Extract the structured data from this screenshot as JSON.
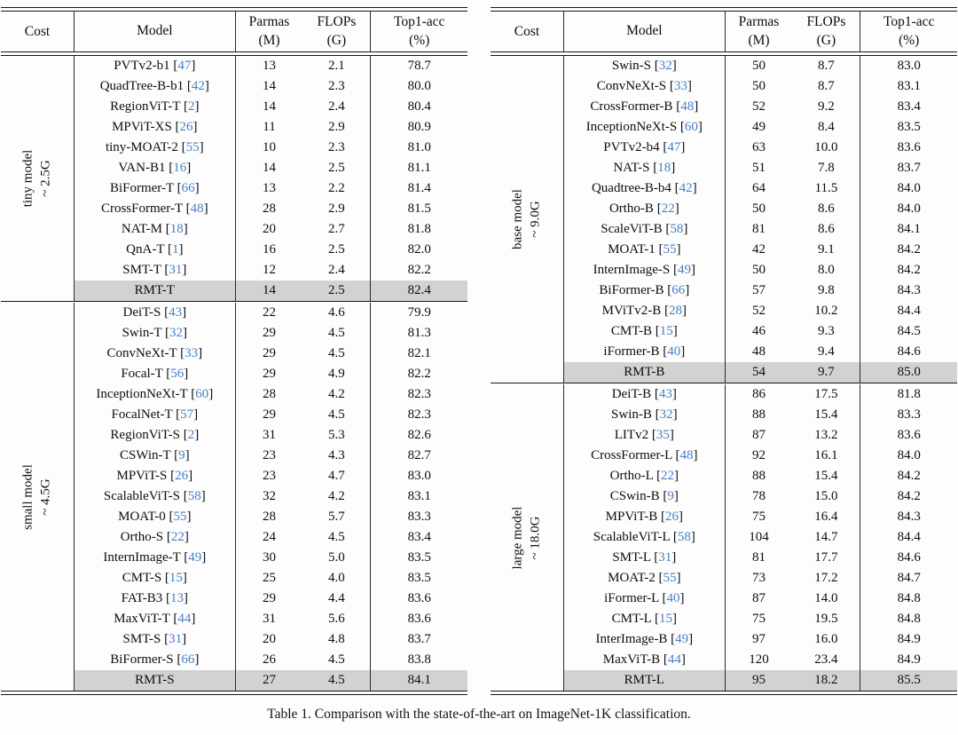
{
  "caption": "Table 1. Comparison with the state-of-the-art on ImageNet-1K classification.",
  "colors": {
    "citation_blue": "#4680c2",
    "highlight_gray": "#d2d2d2",
    "rule_black": "#161616"
  },
  "columns": {
    "cost": "Cost",
    "model": "Model",
    "params_label": "Parmas",
    "params_unit": "(M)",
    "flops_label": "FLOPs",
    "flops_unit": "(G)",
    "acc_label": "Top1-acc",
    "acc_unit": "(%)"
  },
  "tables": [
    {
      "id": "left",
      "sections": [
        {
          "cost_label": [
            "tiny model",
            "~ 2.5G"
          ],
          "rows": [
            {
              "model": "PVTv2-b1",
              "ref": "47",
              "params": "13",
              "flops": "2.1",
              "acc": "78.7",
              "highlight": false
            },
            {
              "model": "QuadTree-B-b1",
              "ref": "42",
              "params": "14",
              "flops": "2.3",
              "acc": "80.0",
              "highlight": false
            },
            {
              "model": "RegionViT-T",
              "ref": "2",
              "params": "14",
              "flops": "2.4",
              "acc": "80.4",
              "highlight": false
            },
            {
              "model": "MPViT-XS",
              "ref": "26",
              "params": "11",
              "flops": "2.9",
              "acc": "80.9",
              "highlight": false
            },
            {
              "model": "tiny-MOAT-2",
              "ref": "55",
              "params": "10",
              "flops": "2.3",
              "acc": "81.0",
              "highlight": false
            },
            {
              "model": "VAN-B1",
              "ref": "16",
              "params": "14",
              "flops": "2.5",
              "acc": "81.1",
              "highlight": false
            },
            {
              "model": "BiFormer-T",
              "ref": "66",
              "params": "13",
              "flops": "2.2",
              "acc": "81.4",
              "highlight": false
            },
            {
              "model": "CrossFormer-T",
              "ref": "48",
              "params": "28",
              "flops": "2.9",
              "acc": "81.5",
              "highlight": false
            },
            {
              "model": "NAT-M",
              "ref": "18",
              "params": "20",
              "flops": "2.7",
              "acc": "81.8",
              "highlight": false
            },
            {
              "model": "QnA-T",
              "ref": "1",
              "params": "16",
              "flops": "2.5",
              "acc": "82.0",
              "highlight": false
            },
            {
              "model": "SMT-T",
              "ref": "31",
              "params": "12",
              "flops": "2.4",
              "acc": "82.2",
              "highlight": false
            },
            {
              "model": "RMT-T",
              "ref": null,
              "params": "14",
              "flops": "2.5",
              "acc": "82.4",
              "highlight": true
            }
          ]
        },
        {
          "cost_label": [
            "small model",
            "~ 4.5G"
          ],
          "rows": [
            {
              "model": "DeiT-S",
              "ref": "43",
              "params": "22",
              "flops": "4.6",
              "acc": "79.9",
              "highlight": false
            },
            {
              "model": "Swin-T",
              "ref": "32",
              "params": "29",
              "flops": "4.5",
              "acc": "81.3",
              "highlight": false
            },
            {
              "model": "ConvNeXt-T",
              "ref": "33",
              "params": "29",
              "flops": "4.5",
              "acc": "82.1",
              "highlight": false
            },
            {
              "model": "Focal-T",
              "ref": "56",
              "params": "29",
              "flops": "4.9",
              "acc": "82.2",
              "highlight": false
            },
            {
              "model": "InceptionNeXt-T",
              "ref": "60",
              "params": "28",
              "flops": "4.2",
              "acc": "82.3",
              "highlight": false
            },
            {
              "model": "FocalNet-T",
              "ref": "57",
              "params": "29",
              "flops": "4.5",
              "acc": "82.3",
              "highlight": false
            },
            {
              "model": "RegionViT-S",
              "ref": "2",
              "params": "31",
              "flops": "5.3",
              "acc": "82.6",
              "highlight": false
            },
            {
              "model": "CSWin-T",
              "ref": "9",
              "params": "23",
              "flops": "4.3",
              "acc": "82.7",
              "highlight": false
            },
            {
              "model": "MPViT-S",
              "ref": "26",
              "params": "23",
              "flops": "4.7",
              "acc": "83.0",
              "highlight": false
            },
            {
              "model": "ScalableViT-S",
              "ref": "58",
              "params": "32",
              "flops": "4.2",
              "acc": "83.1",
              "highlight": false
            },
            {
              "model": "MOAT-0",
              "ref": "55",
              "params": "28",
              "flops": "5.7",
              "acc": "83.3",
              "highlight": false
            },
            {
              "model": "Ortho-S",
              "ref": "22",
              "params": "24",
              "flops": "4.5",
              "acc": "83.4",
              "highlight": false
            },
            {
              "model": "InternImage-T",
              "ref": "49",
              "params": "30",
              "flops": "5.0",
              "acc": "83.5",
              "highlight": false
            },
            {
              "model": "CMT-S",
              "ref": "15",
              "params": "25",
              "flops": "4.0",
              "acc": "83.5",
              "highlight": false
            },
            {
              "model": "FAT-B3",
              "ref": "13",
              "params": "29",
              "flops": "4.4",
              "acc": "83.6",
              "highlight": false
            },
            {
              "model": "MaxViT-T",
              "ref": "44",
              "params": "31",
              "flops": "5.6",
              "acc": "83.6",
              "highlight": false
            },
            {
              "model": "SMT-S",
              "ref": "31",
              "params": "20",
              "flops": "4.8",
              "acc": "83.7",
              "highlight": false
            },
            {
              "model": "BiFormer-S",
              "ref": "66",
              "params": "26",
              "flops": "4.5",
              "acc": "83.8",
              "highlight": false
            },
            {
              "model": "RMT-S",
              "ref": null,
              "params": "27",
              "flops": "4.5",
              "acc": "84.1",
              "highlight": true
            }
          ]
        }
      ]
    },
    {
      "id": "right",
      "sections": [
        {
          "cost_label": [
            "base model",
            "~ 9.0G"
          ],
          "rows": [
            {
              "model": "Swin-S",
              "ref": "32",
              "params": "50",
              "flops": "8.7",
              "acc": "83.0",
              "highlight": false
            },
            {
              "model": "ConvNeXt-S",
              "ref": "33",
              "params": "50",
              "flops": "8.7",
              "acc": "83.1",
              "highlight": false
            },
            {
              "model": "CrossFormer-B",
              "ref": "48",
              "params": "52",
              "flops": "9.2",
              "acc": "83.4",
              "highlight": false
            },
            {
              "model": "InceptionNeXt-S",
              "ref": "60",
              "params": "49",
              "flops": "8.4",
              "acc": "83.5",
              "highlight": false
            },
            {
              "model": "PVTv2-b4",
              "ref": "47",
              "params": "63",
              "flops": "10.0",
              "acc": "83.6",
              "highlight": false
            },
            {
              "model": "NAT-S",
              "ref": "18",
              "params": "51",
              "flops": "7.8",
              "acc": "83.7",
              "highlight": false
            },
            {
              "model": "Quadtree-B-b4",
              "ref": "42",
              "params": "64",
              "flops": "11.5",
              "acc": "84.0",
              "highlight": false
            },
            {
              "model": "Ortho-B",
              "ref": "22",
              "params": "50",
              "flops": "8.6",
              "acc": "84.0",
              "highlight": false
            },
            {
              "model": "ScaleViT-B",
              "ref": "58",
              "params": "81",
              "flops": "8.6",
              "acc": "84.1",
              "highlight": false
            },
            {
              "model": "MOAT-1",
              "ref": "55",
              "params": "42",
              "flops": "9.1",
              "acc": "84.2",
              "highlight": false
            },
            {
              "model": "InternImage-S",
              "ref": "49",
              "params": "50",
              "flops": "8.0",
              "acc": "84.2",
              "highlight": false
            },
            {
              "model": "BiFormer-B",
              "ref": "66",
              "params": "57",
              "flops": "9.8",
              "acc": "84.3",
              "highlight": false
            },
            {
              "model": "MViTv2-B",
              "ref": "28",
              "params": "52",
              "flops": "10.2",
              "acc": "84.4",
              "highlight": false
            },
            {
              "model": "CMT-B",
              "ref": "15",
              "params": "46",
              "flops": "9.3",
              "acc": "84.5",
              "highlight": false
            },
            {
              "model": "iFormer-B",
              "ref": "40",
              "params": "48",
              "flops": "9.4",
              "acc": "84.6",
              "highlight": false
            },
            {
              "model": "RMT-B",
              "ref": null,
              "params": "54",
              "flops": "9.7",
              "acc": "85.0",
              "highlight": true
            }
          ]
        },
        {
          "cost_label": [
            "large model",
            "~ 18.0G"
          ],
          "rows": [
            {
              "model": "DeiT-B",
              "ref": "43",
              "params": "86",
              "flops": "17.5",
              "acc": "81.8",
              "highlight": false
            },
            {
              "model": "Swin-B",
              "ref": "32",
              "params": "88",
              "flops": "15.4",
              "acc": "83.3",
              "highlight": false
            },
            {
              "model": "LITv2",
              "ref": "35",
              "params": "87",
              "flops": "13.2",
              "acc": "83.6",
              "highlight": false
            },
            {
              "model": "CrossFormer-L",
              "ref": "48",
              "params": "92",
              "flops": "16.1",
              "acc": "84.0",
              "highlight": false
            },
            {
              "model": "Ortho-L",
              "ref": "22",
              "params": "88",
              "flops": "15.4",
              "acc": "84.2",
              "highlight": false
            },
            {
              "model": "CSwin-B",
              "ref": "9",
              "params": "78",
              "flops": "15.0",
              "acc": "84.2",
              "highlight": false
            },
            {
              "model": "MPViT-B",
              "ref": "26",
              "params": "75",
              "flops": "16.4",
              "acc": "84.3",
              "highlight": false
            },
            {
              "model": "ScalableViT-L",
              "ref": "58",
              "params": "104",
              "flops": "14.7",
              "acc": "84.4",
              "highlight": false
            },
            {
              "model": "SMT-L",
              "ref": "31",
              "params": "81",
              "flops": "17.7",
              "acc": "84.6",
              "highlight": false
            },
            {
              "model": "MOAT-2",
              "ref": "55",
              "params": "73",
              "flops": "17.2",
              "acc": "84.7",
              "highlight": false
            },
            {
              "model": "iFormer-L",
              "ref": "40",
              "params": "87",
              "flops": "14.0",
              "acc": "84.8",
              "highlight": false
            },
            {
              "model": "CMT-L",
              "ref": "15",
              "params": "75",
              "flops": "19.5",
              "acc": "84.8",
              "highlight": false
            },
            {
              "model": "InterImage-B",
              "ref": "49",
              "params": "97",
              "flops": "16.0",
              "acc": "84.9",
              "highlight": false
            },
            {
              "model": "MaxViT-B",
              "ref": "44",
              "params": "120",
              "flops": "23.4",
              "acc": "84.9",
              "highlight": false
            },
            {
              "model": "RMT-L",
              "ref": null,
              "params": "95",
              "flops": "18.2",
              "acc": "85.5",
              "highlight": true
            }
          ]
        }
      ]
    }
  ]
}
